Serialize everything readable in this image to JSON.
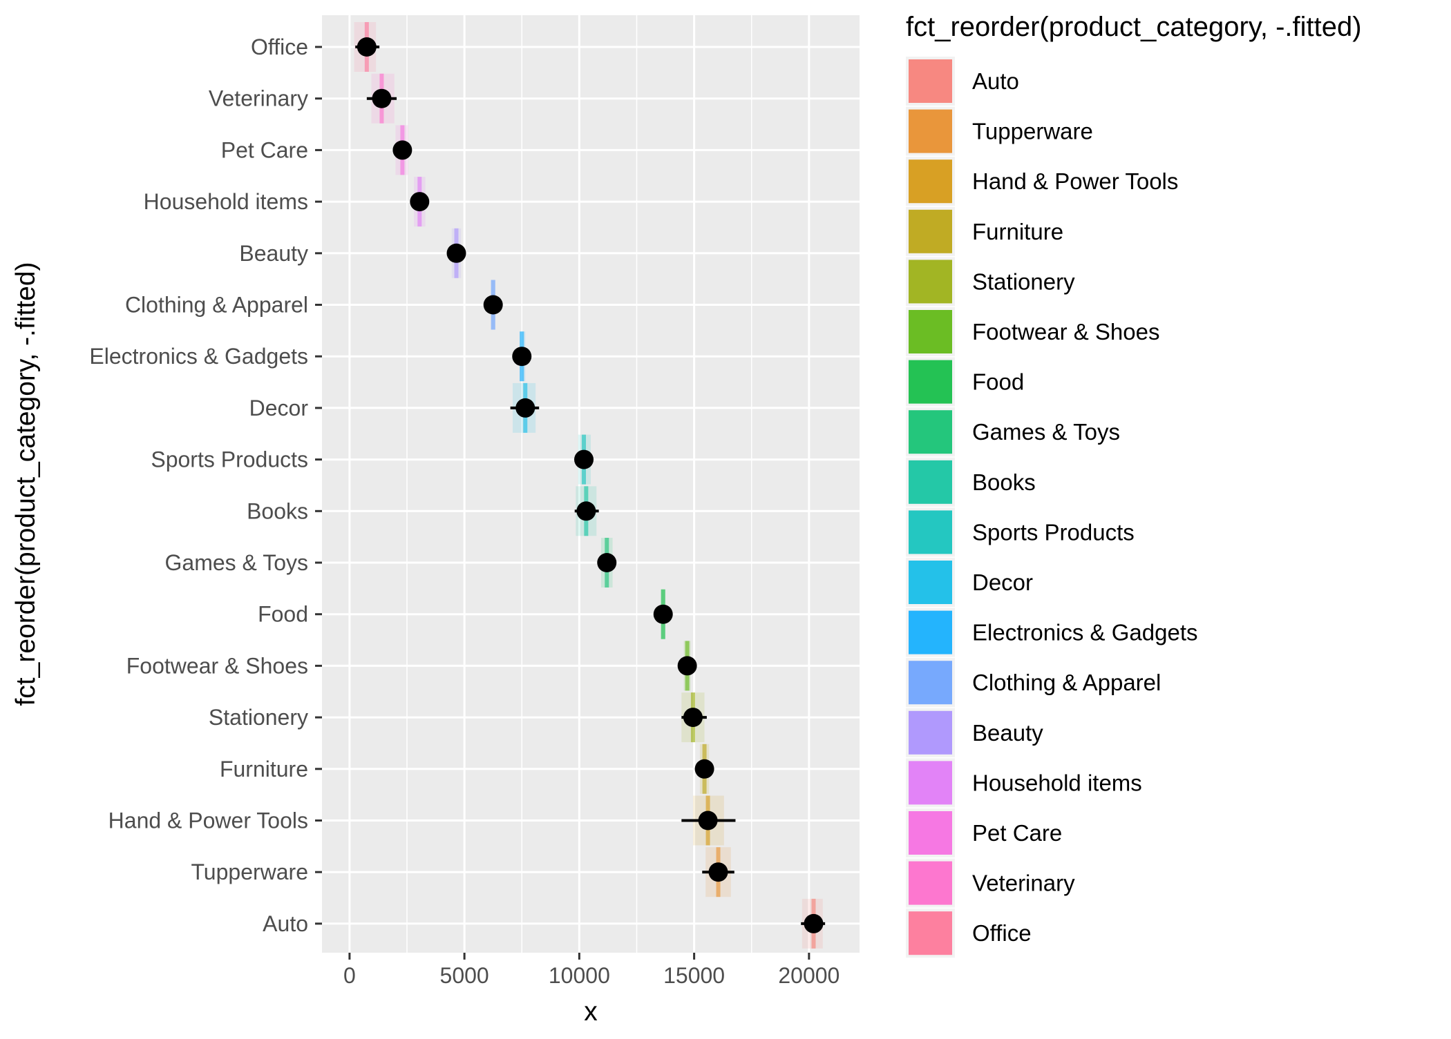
{
  "chart_data": {
    "type": "scatter",
    "x_label": "x",
    "y_label": "fct_reorder(product_category, -.fitted)",
    "x_range": [
      -1200,
      22200
    ],
    "x_ticks": [
      0,
      5000,
      10000,
      15000,
      20000
    ],
    "x_tick_labels": [
      "0",
      "5000",
      "10000",
      "15000",
      "20000"
    ],
    "grid": true,
    "panel_background": "#ebebeb",
    "point_color": "#000000",
    "categories": [
      "Office",
      "Veterinary",
      "Pet Care",
      "Household items",
      "Beauty",
      "Clothing & Apparel",
      "Electronics & Gadgets",
      "Decor",
      "Sports Products",
      "Books",
      "Games & Toys",
      "Food",
      "Footwear & Shoes",
      "Stationery",
      "Furniture",
      "Hand & Power Tools",
      "Tupperware",
      "Auto"
    ],
    "points": [
      {
        "category": "Office",
        "x": 750,
        "xmin": 250,
        "xmax": 1300,
        "band_min": 200,
        "band_max": 1150,
        "color": "#ff6c91"
      },
      {
        "category": "Veterinary",
        "x": 1400,
        "xmin": 750,
        "xmax": 2050,
        "band_min": 950,
        "band_max": 1950,
        "color": "#ff61c9"
      },
      {
        "category": "Pet Care",
        "x": 2300,
        "xmin": 2000,
        "xmax": 2600,
        "band_min": 2000,
        "band_max": 2550,
        "color": "#f763e0"
      },
      {
        "category": "Household items",
        "x": 3050,
        "xmin": 2800,
        "xmax": 3300,
        "band_min": 2800,
        "band_max": 3300,
        "color": "#df70f8"
      },
      {
        "category": "Beauty",
        "x": 4650,
        "xmin": 4450,
        "xmax": 4900,
        "band_min": 4450,
        "band_max": 4850,
        "color": "#a58aff"
      },
      {
        "category": "Clothing & Apparel",
        "x": 6250,
        "xmin": 6100,
        "xmax": 6400,
        "band_min": 6150,
        "band_max": 6350,
        "color": "#619cff"
      },
      {
        "category": "Electronics & Gadgets",
        "x": 7500,
        "xmin": 7350,
        "xmax": 7700,
        "band_min": 7400,
        "band_max": 7650,
        "color": "#00a9ff"
      },
      {
        "category": "Decor",
        "x": 7650,
        "xmin": 7000,
        "xmax": 8250,
        "band_min": 7100,
        "band_max": 8100,
        "color": "#00b8e7"
      },
      {
        "category": "Sports Products",
        "x": 10200,
        "xmin": 10000,
        "xmax": 10450,
        "band_min": 9950,
        "band_max": 10500,
        "color": "#00c0b8"
      },
      {
        "category": "Books",
        "x": 10300,
        "xmin": 9800,
        "xmax": 10850,
        "band_min": 9850,
        "band_max": 10750,
        "color": "#00c19a"
      },
      {
        "category": "Games & Toys",
        "x": 11200,
        "xmin": 10950,
        "xmax": 11450,
        "band_min": 10950,
        "band_max": 11450,
        "color": "#00be67"
      },
      {
        "category": "Food",
        "x": 13650,
        "xmin": 13500,
        "xmax": 13800,
        "band_min": 13550,
        "band_max": 13750,
        "color": "#00ba38"
      },
      {
        "category": "Footwear & Shoes",
        "x": 14700,
        "xmin": 14500,
        "xmax": 14900,
        "band_min": 14550,
        "band_max": 14850,
        "color": "#53b400"
      },
      {
        "category": "Stationery",
        "x": 14950,
        "xmin": 14450,
        "xmax": 15550,
        "band_min": 14450,
        "band_max": 15450,
        "color": "#94aa00"
      },
      {
        "category": "Furniture",
        "x": 15450,
        "xmin": 15250,
        "xmax": 15700,
        "band_min": 15250,
        "band_max": 15650,
        "color": "#b79f00"
      },
      {
        "category": "Hand & Power Tools",
        "x": 15600,
        "xmin": 14450,
        "xmax": 16800,
        "band_min": 14950,
        "band_max": 16300,
        "color": "#d39200"
      },
      {
        "category": "Tupperware",
        "x": 16050,
        "xmin": 15350,
        "xmax": 16750,
        "band_min": 15500,
        "band_max": 16600,
        "color": "#e7861b"
      },
      {
        "category": "Auto",
        "x": 20200,
        "xmin": 19650,
        "xmax": 20700,
        "band_min": 19700,
        "band_max": 20600,
        "color": "#f8766d"
      }
    ],
    "legend": {
      "position": "right",
      "title": "fct_reorder(product_category, -.fitted)",
      "entries": [
        {
          "label": "Auto",
          "color": "#f8766d"
        },
        {
          "label": "Tupperware",
          "color": "#e7861b"
        },
        {
          "label": "Hand & Power Tools",
          "color": "#d39200"
        },
        {
          "label": "Furniture",
          "color": "#b79f00"
        },
        {
          "label": "Stationery",
          "color": "#94aa00"
        },
        {
          "label": "Footwear & Shoes",
          "color": "#53b400"
        },
        {
          "label": "Food",
          "color": "#00ba38"
        },
        {
          "label": "Games & Toys",
          "color": "#00be67"
        },
        {
          "label": "Books",
          "color": "#00c19a"
        },
        {
          "label": "Sports Products",
          "color": "#00c0b8"
        },
        {
          "label": "Decor",
          "color": "#00b8e7"
        },
        {
          "label": "Electronics & Gadgets",
          "color": "#00a9ff"
        },
        {
          "label": "Clothing & Apparel",
          "color": "#619cff"
        },
        {
          "label": "Beauty",
          "color": "#a58aff"
        },
        {
          "label": "Household items",
          "color": "#df70f8"
        },
        {
          "label": "Pet Care",
          "color": "#f763e0"
        },
        {
          "label": "Veterinary",
          "color": "#ff61c9"
        },
        {
          "label": "Office",
          "color": "#ff6c91"
        }
      ]
    }
  }
}
